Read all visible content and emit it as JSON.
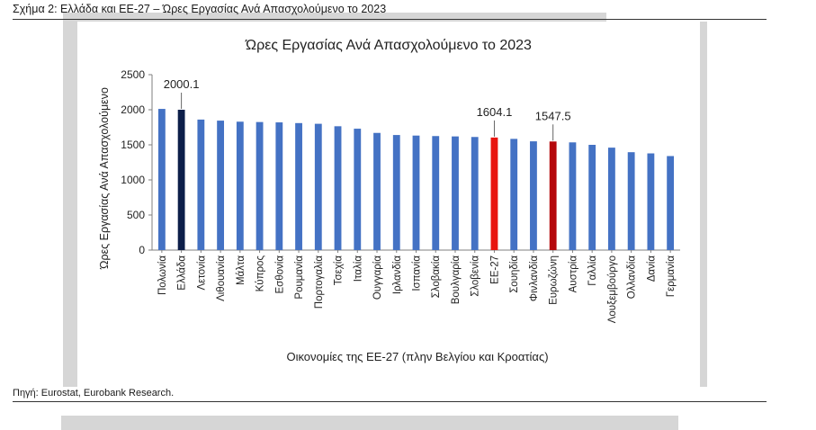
{
  "caption": "Σχήμα 2: Ελλάδα και ΕΕ-27 – Ώρες Εργασίας Ανά Απασχολούμενο το 2023",
  "source": "Πηγή: Eurostat, Eurobank Research.",
  "colors": {
    "default_bar": "#4472c4",
    "highlight_navy": "#0d1f4a",
    "highlight_red": "#e8140f",
    "highlight_darkred": "#b5080c",
    "axis": "#7f7f7f"
  },
  "chart_data": {
    "type": "bar",
    "title": "Ώρες Εργασίας Ανά Απασχολούμενο το 2023",
    "xlabel": "Οικονομίες της ΕΕ-27 (πλην Βελγίου και Κροατίας)",
    "ylabel": "Ώρες Εργασίας Ανά Απασχολούμενο",
    "ylim": [
      0,
      2500
    ],
    "yticks": [
      "0",
      "500",
      "1000",
      "1500",
      "2000",
      "2500"
    ],
    "grid": false,
    "categories": [
      "Πολωνία",
      "Ελλάδα",
      "Λετονία",
      "Λιθουανία",
      "Μάλτα",
      "Κύπρος",
      "Εσθονία",
      "Ρουμανία",
      "Πορτογαλία",
      "Τσεχία",
      "Ιταλία",
      "Ουγγαρία",
      "Ιρλανδία",
      "Ισπανία",
      "Σλοβακία",
      "Βουλγαρία",
      "Σλοβενία",
      "ΕΕ-27",
      "Σουηδία",
      "Φινλανδία",
      "Ευρωζώνη",
      "Αυστρία",
      "Γαλλία",
      "Λουξεμβούργο",
      "Ολλανδία",
      "Δανία",
      "Γερμανία"
    ],
    "values": [
      2012,
      2000.1,
      1860,
      1845,
      1830,
      1825,
      1820,
      1810,
      1800,
      1765,
      1730,
      1670,
      1640,
      1632,
      1625,
      1620,
      1612,
      1604.1,
      1585,
      1550,
      1547.5,
      1535,
      1500,
      1460,
      1395,
      1378,
      1340
    ],
    "bar_colors": [
      "default_bar",
      "highlight_navy",
      "default_bar",
      "default_bar",
      "default_bar",
      "default_bar",
      "default_bar",
      "default_bar",
      "default_bar",
      "default_bar",
      "default_bar",
      "default_bar",
      "default_bar",
      "default_bar",
      "default_bar",
      "default_bar",
      "default_bar",
      "highlight_red",
      "default_bar",
      "default_bar",
      "highlight_darkred",
      "default_bar",
      "default_bar",
      "default_bar",
      "default_bar",
      "default_bar",
      "default_bar"
    ],
    "annotations": [
      {
        "category": "Ελλάδα",
        "label": "2000.1"
      },
      {
        "category": "ΕΕ-27",
        "label": "1604.1"
      },
      {
        "category": "Ευρωζώνη",
        "label": "1547.5"
      }
    ]
  }
}
